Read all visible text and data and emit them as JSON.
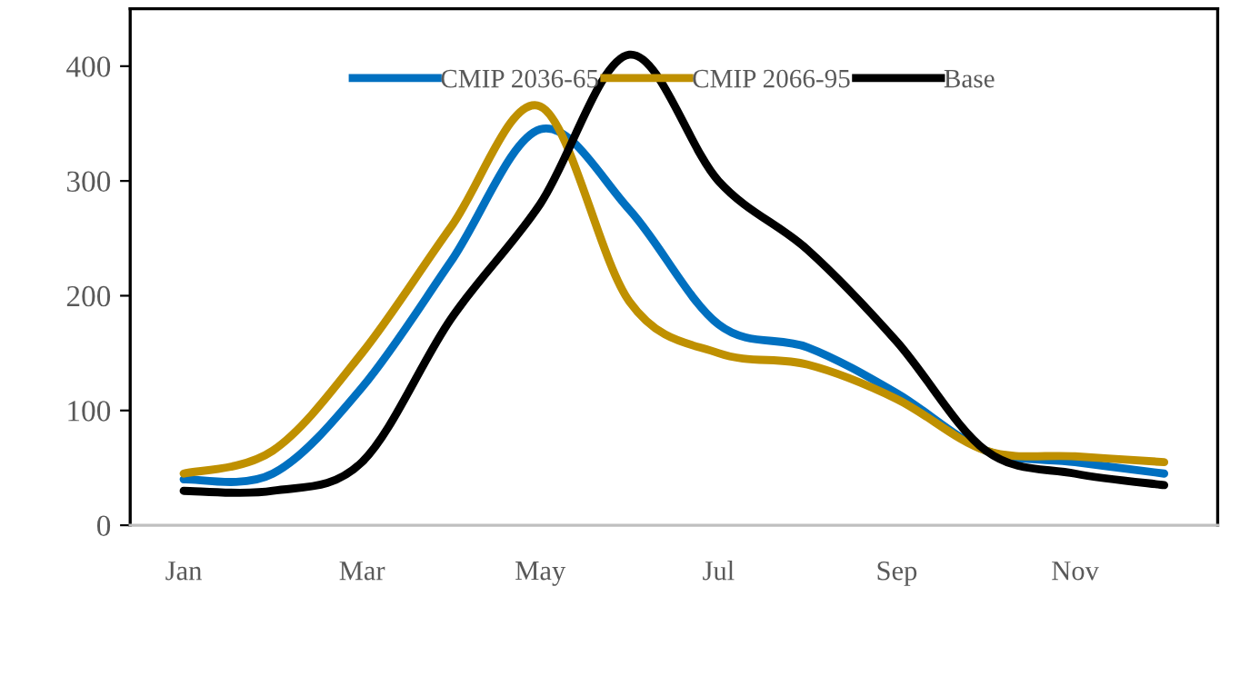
{
  "chart_data": {
    "type": "line",
    "categories": [
      "Jan",
      null,
      "Mar",
      null,
      "May",
      null,
      "Jul",
      null,
      "Sep",
      null,
      "Nov",
      null
    ],
    "series": [
      {
        "name": "CMIP 2036-65",
        "color": "#0070c0",
        "values": [
          40,
          45,
          120,
          230,
          345,
          275,
          175,
          155,
          115,
          65,
          55,
          45
        ]
      },
      {
        "name": "CMIP 2066-95",
        "color": "#bf9000",
        "values": [
          45,
          65,
          150,
          260,
          365,
          195,
          150,
          140,
          110,
          65,
          60,
          55
        ]
      },
      {
        "name": "Base",
        "color": "#000000",
        "values": [
          30,
          30,
          55,
          180,
          280,
          410,
          300,
          240,
          160,
          65,
          45,
          35
        ]
      }
    ],
    "ylim": [
      0,
      450
    ],
    "yticks": [
      0,
      100,
      200,
      300,
      400
    ],
    "grid": false,
    "legend": "top",
    "marker": "none",
    "line_style": "solid"
  }
}
